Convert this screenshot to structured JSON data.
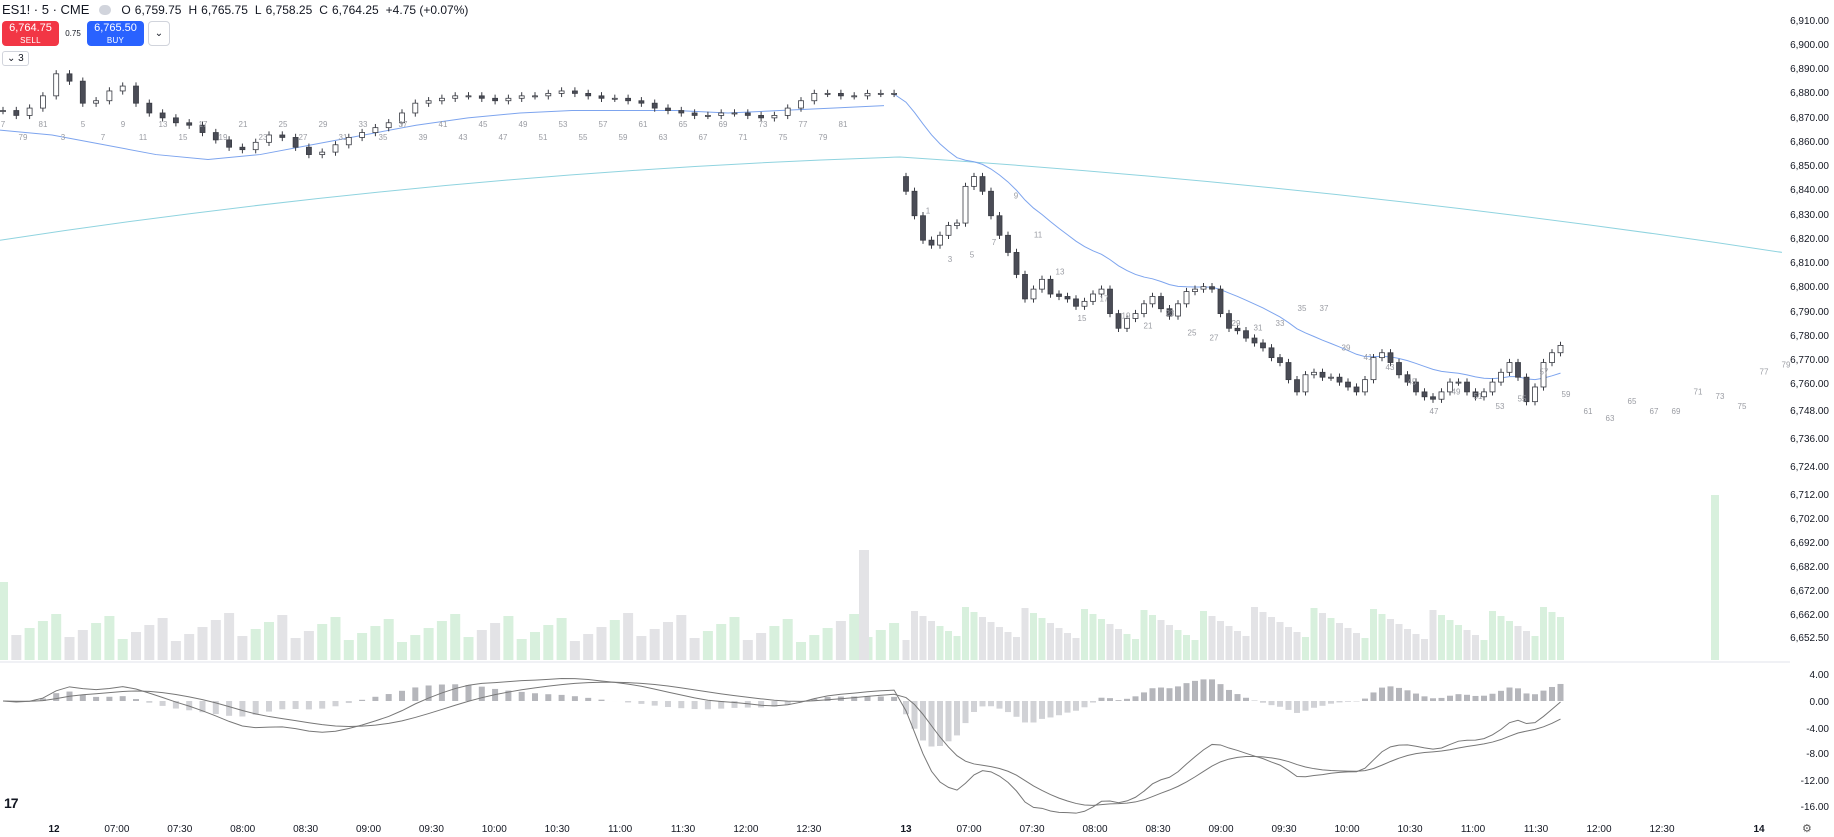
{
  "header": {
    "symbol": "ES1! · 5 · CME",
    "open_label": "O",
    "open": "6,759.75",
    "high_label": "H",
    "high": "6,765.75",
    "low_label": "L",
    "low": "6,758.25",
    "close_label": "C",
    "close": "6,764.25",
    "change": "+4.75 (+0.07%)"
  },
  "trade": {
    "sell_price": "6,764.75",
    "sell_label": "SELL",
    "spread": "0.75",
    "buy_price": "6,765.50",
    "buy_label": "BUY",
    "dropdown_icon": "chevron-down-icon"
  },
  "indicators_badge": "⌄ 3",
  "colors": {
    "bear_body": "#4a4c56",
    "bull_body": "#ffffff",
    "candle_border": "#3a3c44",
    "ma_fast": "#7da4ee",
    "ma_fast_alt": "#f06b6b",
    "ma_slow": "#8fd3df",
    "vol_up": "#d8f0dd",
    "vol_down": "#e3e3e6",
    "macd_line": "#777777",
    "macd_hist_up": "#b5b6bb",
    "macd_hist_down": "#d1d2d6"
  },
  "price_axis": [
    "6,910.00",
    "6,900.00",
    "6,890.00",
    "6,880.00",
    "6,870.00",
    "6,860.00",
    "6,850.00",
    "6,840.00",
    "6,830.00",
    "6,820.00",
    "6,810.00",
    "6,800.00",
    "6,790.00",
    "6,780.00",
    "6,770.00",
    "6,760.00",
    "6,748.00",
    "6,736.00",
    "6,724.00",
    "6,712.00",
    "6,702.00",
    "6,692.00",
    "6,682.00",
    "6,672.00",
    "6,662.00",
    "6,652.50"
  ],
  "macd_axis": [
    "4.00",
    "0.00",
    "-4.00",
    "-8.00",
    "-12.00",
    "-16.00"
  ],
  "time_axis": [
    {
      "label": "12",
      "bold": true
    },
    {
      "label": "07:00"
    },
    {
      "label": "07:30"
    },
    {
      "label": "08:00"
    },
    {
      "label": "08:30"
    },
    {
      "label": "09:00"
    },
    {
      "label": "09:30"
    },
    {
      "label": "10:00"
    },
    {
      "label": "10:30"
    },
    {
      "label": "11:00"
    },
    {
      "label": "11:30"
    },
    {
      "label": "12:00"
    },
    {
      "label": "12:30"
    },
    {
      "label": "13",
      "bold": true
    },
    {
      "label": "07:00"
    },
    {
      "label": "07:30"
    },
    {
      "label": "08:00"
    },
    {
      "label": "08:30"
    },
    {
      "label": "09:00"
    },
    {
      "label": "09:30"
    },
    {
      "label": "10:00"
    },
    {
      "label": "10:30"
    },
    {
      "label": "11:00"
    },
    {
      "label": "11:30"
    },
    {
      "label": "12:00"
    },
    {
      "label": "12:30"
    },
    {
      "label": "14",
      "bold": true
    }
  ],
  "bar_labels_day1": [
    "7",
    "79",
    "81",
    "3",
    "5",
    "7",
    "9",
    "11",
    "13",
    "15",
    "17",
    "19",
    "21",
    "23",
    "25",
    "27",
    "29",
    "31",
    "33",
    "35",
    "37",
    "39",
    "41",
    "43",
    "45",
    "47",
    "49",
    "51",
    "53",
    "55",
    "57",
    "59",
    "61",
    "63",
    "65",
    "67",
    "69",
    "71",
    "73",
    "75",
    "77",
    "79",
    "81"
  ],
  "bar_labels_day2": [
    "1",
    "3",
    "5",
    "7",
    "9",
    "11",
    "13",
    "15",
    "17",
    "19",
    "21",
    "23",
    "25",
    "27",
    "29",
    "31",
    "33",
    "35",
    "37",
    "39",
    "41",
    "43",
    "45",
    "47",
    "49",
    "51",
    "53",
    "55",
    "57",
    "59",
    "61",
    "63",
    "65",
    "67",
    "69",
    "71",
    "73",
    "75",
    "77",
    "79"
  ],
  "logo_text": "17",
  "settings_icon": "gear-icon",
  "chart_data": {
    "type": "candlestick",
    "day1": {
      "start_close": 6873,
      "closes": [
        6873,
        6871,
        6874,
        6879,
        6888,
        6885,
        6876,
        6877,
        6881,
        6883,
        6876,
        6872,
        6870,
        6868,
        6867,
        6864,
        6861,
        6858,
        6857,
        6860,
        6863,
        6862,
        6858,
        6855,
        6856,
        6859,
        6862,
        6864,
        6866,
        6868,
        6872,
        6876,
        6877,
        6878,
        6879,
        6879,
        6878,
        6877,
        6878,
        6879,
        6879,
        6880,
        6881,
        6880,
        6879,
        6878,
        6878,
        6877,
        6876,
        6874,
        6873,
        6872,
        6871,
        6871,
        6872,
        6872,
        6871,
        6870,
        6871,
        6874,
        6877,
        6880,
        6880,
        6879,
        6879,
        6880,
        6880,
        6880
      ]
    },
    "day2": {
      "closes": [
        6840,
        6830,
        6820,
        6818,
        6822,
        6826,
        6827,
        6842,
        6846,
        6840,
        6830,
        6822,
        6815,
        6806,
        6796,
        6800,
        6804,
        6798,
        6797,
        6796,
        6793,
        6795,
        6798,
        6800,
        6790,
        6784,
        6788,
        6790,
        6794,
        6797,
        6792,
        6789,
        6794,
        6799,
        6800,
        6801,
        6800,
        6790,
        6784,
        6783,
        6780,
        6778,
        6776,
        6772,
        6770,
        6763,
        6758,
        6765,
        6766,
        6764,
        6764,
        6762,
        6760,
        6758,
        6763,
        6772,
        6774,
        6770,
        6765,
        6762,
        6758,
        6756,
        6755,
        6758,
        6762,
        6762,
        6758,
        6756,
        6758,
        6762,
        6766,
        6770,
        6764,
        6754,
        6760,
        6770,
        6774,
        6777
      ]
    },
    "ma_fast_day1": [
      6868,
      6866,
      6862,
      6858,
      6856,
      6858,
      6862,
      6866,
      6870,
      6873,
      6875,
      6876,
      6876,
      6876,
      6875,
      6876,
      6877,
      6878
    ],
    "ma_slow_range": [
      6820,
      6854,
      6815
    ],
    "macd_range": [
      4,
      -16
    ]
  }
}
